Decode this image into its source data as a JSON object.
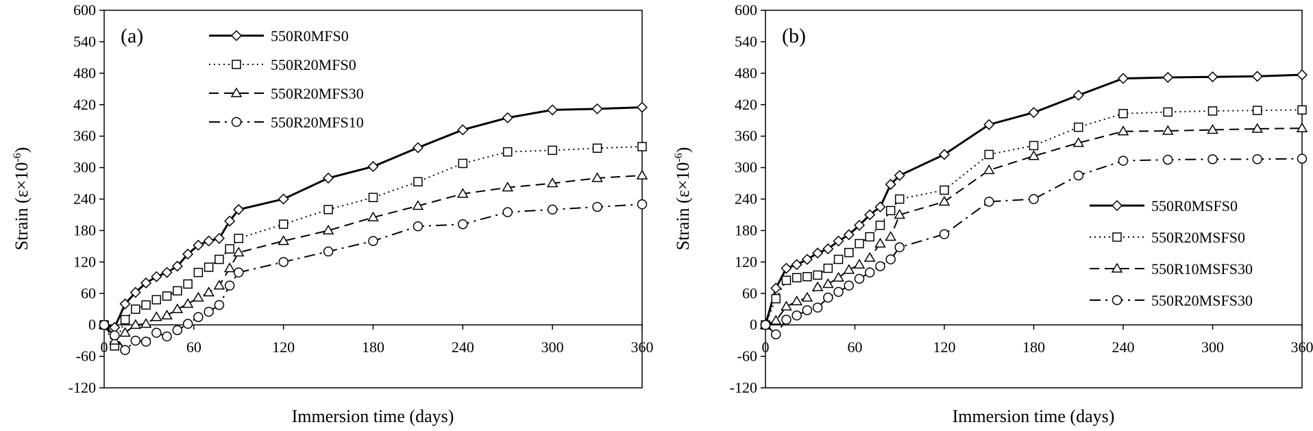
{
  "chart_data": [
    {
      "type": "line",
      "panel_label": "(a)",
      "xlabel": "Immersion time (days)",
      "ylabel": "Strain (ε×10",
      "ylabel_exp": "-6",
      "ylabel_close": ")",
      "xlim": [
        0,
        360
      ],
      "ylim": [
        -120,
        600
      ],
      "xticks": [
        0,
        60,
        120,
        180,
        240,
        300,
        360
      ],
      "yticks": [
        -120,
        -60,
        0,
        60,
        120,
        180,
        240,
        300,
        360,
        420,
        480,
        540,
        600
      ],
      "legend_position": "top-left",
      "series": [
        {
          "name": "550R0MFS0",
          "style": "solid-thick",
          "marker": "diamond",
          "x": [
            0,
            7,
            14,
            21,
            28,
            35,
            42,
            49,
            56,
            63,
            70,
            77,
            84,
            90,
            120,
            150,
            180,
            210,
            240,
            270,
            300,
            330,
            360
          ],
          "y": [
            0,
            -5,
            40,
            62,
            80,
            92,
            100,
            112,
            135,
            152,
            160,
            165,
            198,
            220,
            240,
            280,
            302,
            338,
            372,
            395,
            410,
            412,
            415
          ]
        },
        {
          "name": "550R20MFS0",
          "style": "dotted",
          "marker": "square",
          "x": [
            0,
            7,
            14,
            21,
            28,
            35,
            42,
            49,
            56,
            63,
            70,
            77,
            84,
            90,
            120,
            150,
            180,
            210,
            240,
            270,
            300,
            330,
            360
          ],
          "y": [
            0,
            -40,
            10,
            30,
            38,
            48,
            55,
            65,
            78,
            100,
            110,
            125,
            145,
            165,
            192,
            220,
            243,
            273,
            308,
            330,
            333,
            337,
            340
          ]
        },
        {
          "name": "550R20MFS30",
          "style": "dashed",
          "marker": "triangle",
          "x": [
            0,
            7,
            14,
            21,
            28,
            35,
            42,
            49,
            56,
            63,
            70,
            77,
            84,
            90,
            120,
            150,
            180,
            210,
            240,
            270,
            300,
            330,
            360
          ],
          "y": [
            0,
            -30,
            -15,
            0,
            2,
            15,
            18,
            30,
            40,
            52,
            62,
            75,
            108,
            138,
            160,
            180,
            205,
            227,
            250,
            262,
            270,
            280,
            285
          ]
        },
        {
          "name": "550R20MFS10",
          "style": "dash-dot",
          "marker": "circle",
          "x": [
            0,
            7,
            14,
            21,
            28,
            35,
            42,
            49,
            56,
            63,
            70,
            77,
            84,
            90,
            120,
            150,
            180,
            210,
            240,
            270,
            300,
            330,
            360
          ],
          "y": [
            0,
            -20,
            -48,
            -30,
            -32,
            -15,
            -22,
            -10,
            2,
            15,
            25,
            38,
            75,
            100,
            120,
            140,
            160,
            188,
            192,
            215,
            220,
            225,
            230
          ]
        }
      ]
    },
    {
      "type": "line",
      "panel_label": "(b)",
      "xlabel": "Immersion time (days)",
      "ylabel": "Strain (ε×10",
      "ylabel_exp": "-6",
      "ylabel_close": ")",
      "xlim": [
        0,
        360
      ],
      "ylim": [
        -120,
        600
      ],
      "xticks": [
        0,
        60,
        120,
        180,
        240,
        300,
        360
      ],
      "yticks": [
        -120,
        -60,
        0,
        60,
        120,
        180,
        240,
        300,
        360,
        420,
        480,
        540,
        600
      ],
      "legend_position": "right-middle",
      "series": [
        {
          "name": "550R0MSFS0",
          "style": "solid-thick",
          "marker": "diamond",
          "x": [
            0,
            7,
            14,
            21,
            28,
            35,
            42,
            49,
            56,
            63,
            70,
            77,
            84,
            90,
            120,
            150,
            180,
            210,
            240,
            270,
            300,
            330,
            360
          ],
          "y": [
            0,
            70,
            108,
            115,
            125,
            137,
            145,
            160,
            172,
            190,
            210,
            225,
            268,
            285,
            325,
            382,
            405,
            438,
            470,
            472,
            473,
            474,
            477
          ]
        },
        {
          "name": "550R20MSFS0",
          "style": "dotted",
          "marker": "square",
          "x": [
            0,
            7,
            14,
            21,
            28,
            35,
            42,
            49,
            56,
            63,
            70,
            77,
            84,
            90,
            120,
            150,
            180,
            210,
            240,
            270,
            300,
            330,
            360
          ],
          "y": [
            0,
            50,
            85,
            90,
            92,
            95,
            108,
            125,
            138,
            155,
            168,
            190,
            218,
            240,
            257,
            325,
            342,
            377,
            403,
            406,
            408,
            409,
            410
          ]
        },
        {
          "name": "550R10MSFS30",
          "style": "dashed",
          "marker": "triangle",
          "x": [
            0,
            7,
            14,
            21,
            28,
            35,
            42,
            49,
            56,
            63,
            70,
            77,
            84,
            90,
            120,
            150,
            180,
            210,
            240,
            270,
            300,
            330,
            360
          ],
          "y": [
            0,
            8,
            35,
            45,
            52,
            72,
            78,
            90,
            105,
            115,
            128,
            155,
            168,
            210,
            235,
            295,
            322,
            347,
            369,
            370,
            372,
            374,
            375
          ]
        },
        {
          "name": "550R20MSFS30",
          "style": "dash-dot",
          "marker": "circle",
          "x": [
            0,
            7,
            14,
            21,
            28,
            35,
            42,
            49,
            56,
            63,
            70,
            77,
            84,
            90,
            120,
            150,
            180,
            210,
            240,
            270,
            300,
            330,
            360
          ],
          "y": [
            0,
            -18,
            10,
            18,
            28,
            33,
            52,
            63,
            75,
            88,
            100,
            112,
            125,
            148,
            173,
            235,
            240,
            285,
            313,
            315,
            316,
            316,
            317
          ]
        }
      ]
    }
  ]
}
